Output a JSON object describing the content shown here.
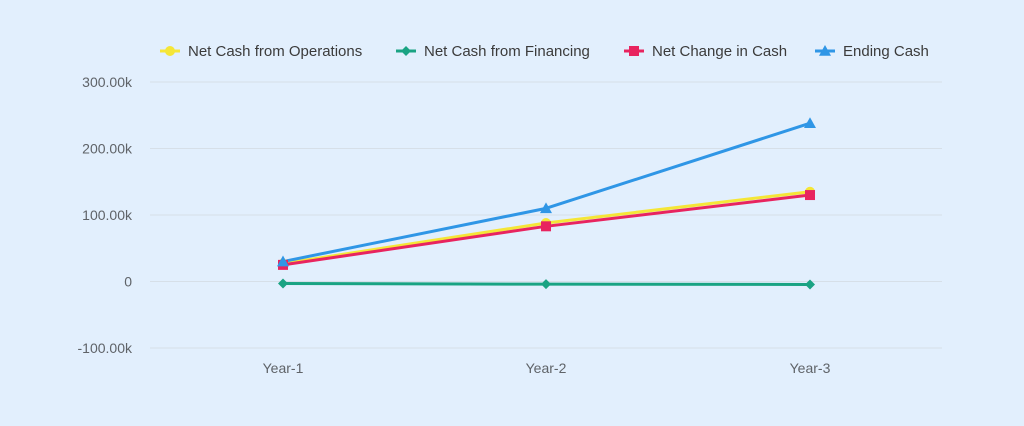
{
  "chart_data": {
    "type": "line",
    "categories": [
      "Year-1",
      "Year-2",
      "Year-3"
    ],
    "series": [
      {
        "name": "Net Cash from Operations",
        "values": [
          27000,
          88000,
          135000
        ],
        "color": "#f5e637",
        "marker": "circle"
      },
      {
        "name": "Net Cash from Financing",
        "values": [
          -3000,
          -4000,
          -4500
        ],
        "color": "#1aa383",
        "marker": "diamond"
      },
      {
        "name": "Net Change in Cash",
        "values": [
          25000,
          83000,
          130000
        ],
        "color": "#e8245f",
        "marker": "square"
      },
      {
        "name": "Ending Cash",
        "values": [
          30000,
          110000,
          238000
        ],
        "color": "#2f96e6",
        "marker": "triangle"
      }
    ],
    "yticks": [
      {
        "value": 300000,
        "label": "300.00k"
      },
      {
        "value": 200000,
        "label": "200.00k"
      },
      {
        "value": 100000,
        "label": "100.00k"
      },
      {
        "value": 0,
        "label": "0"
      },
      {
        "value": -100000,
        "label": "-100.00k"
      }
    ],
    "ylim": [
      -100000,
      300000
    ],
    "grid": true,
    "legend_position": "top",
    "title": "",
    "xlabel": "",
    "ylabel": ""
  }
}
